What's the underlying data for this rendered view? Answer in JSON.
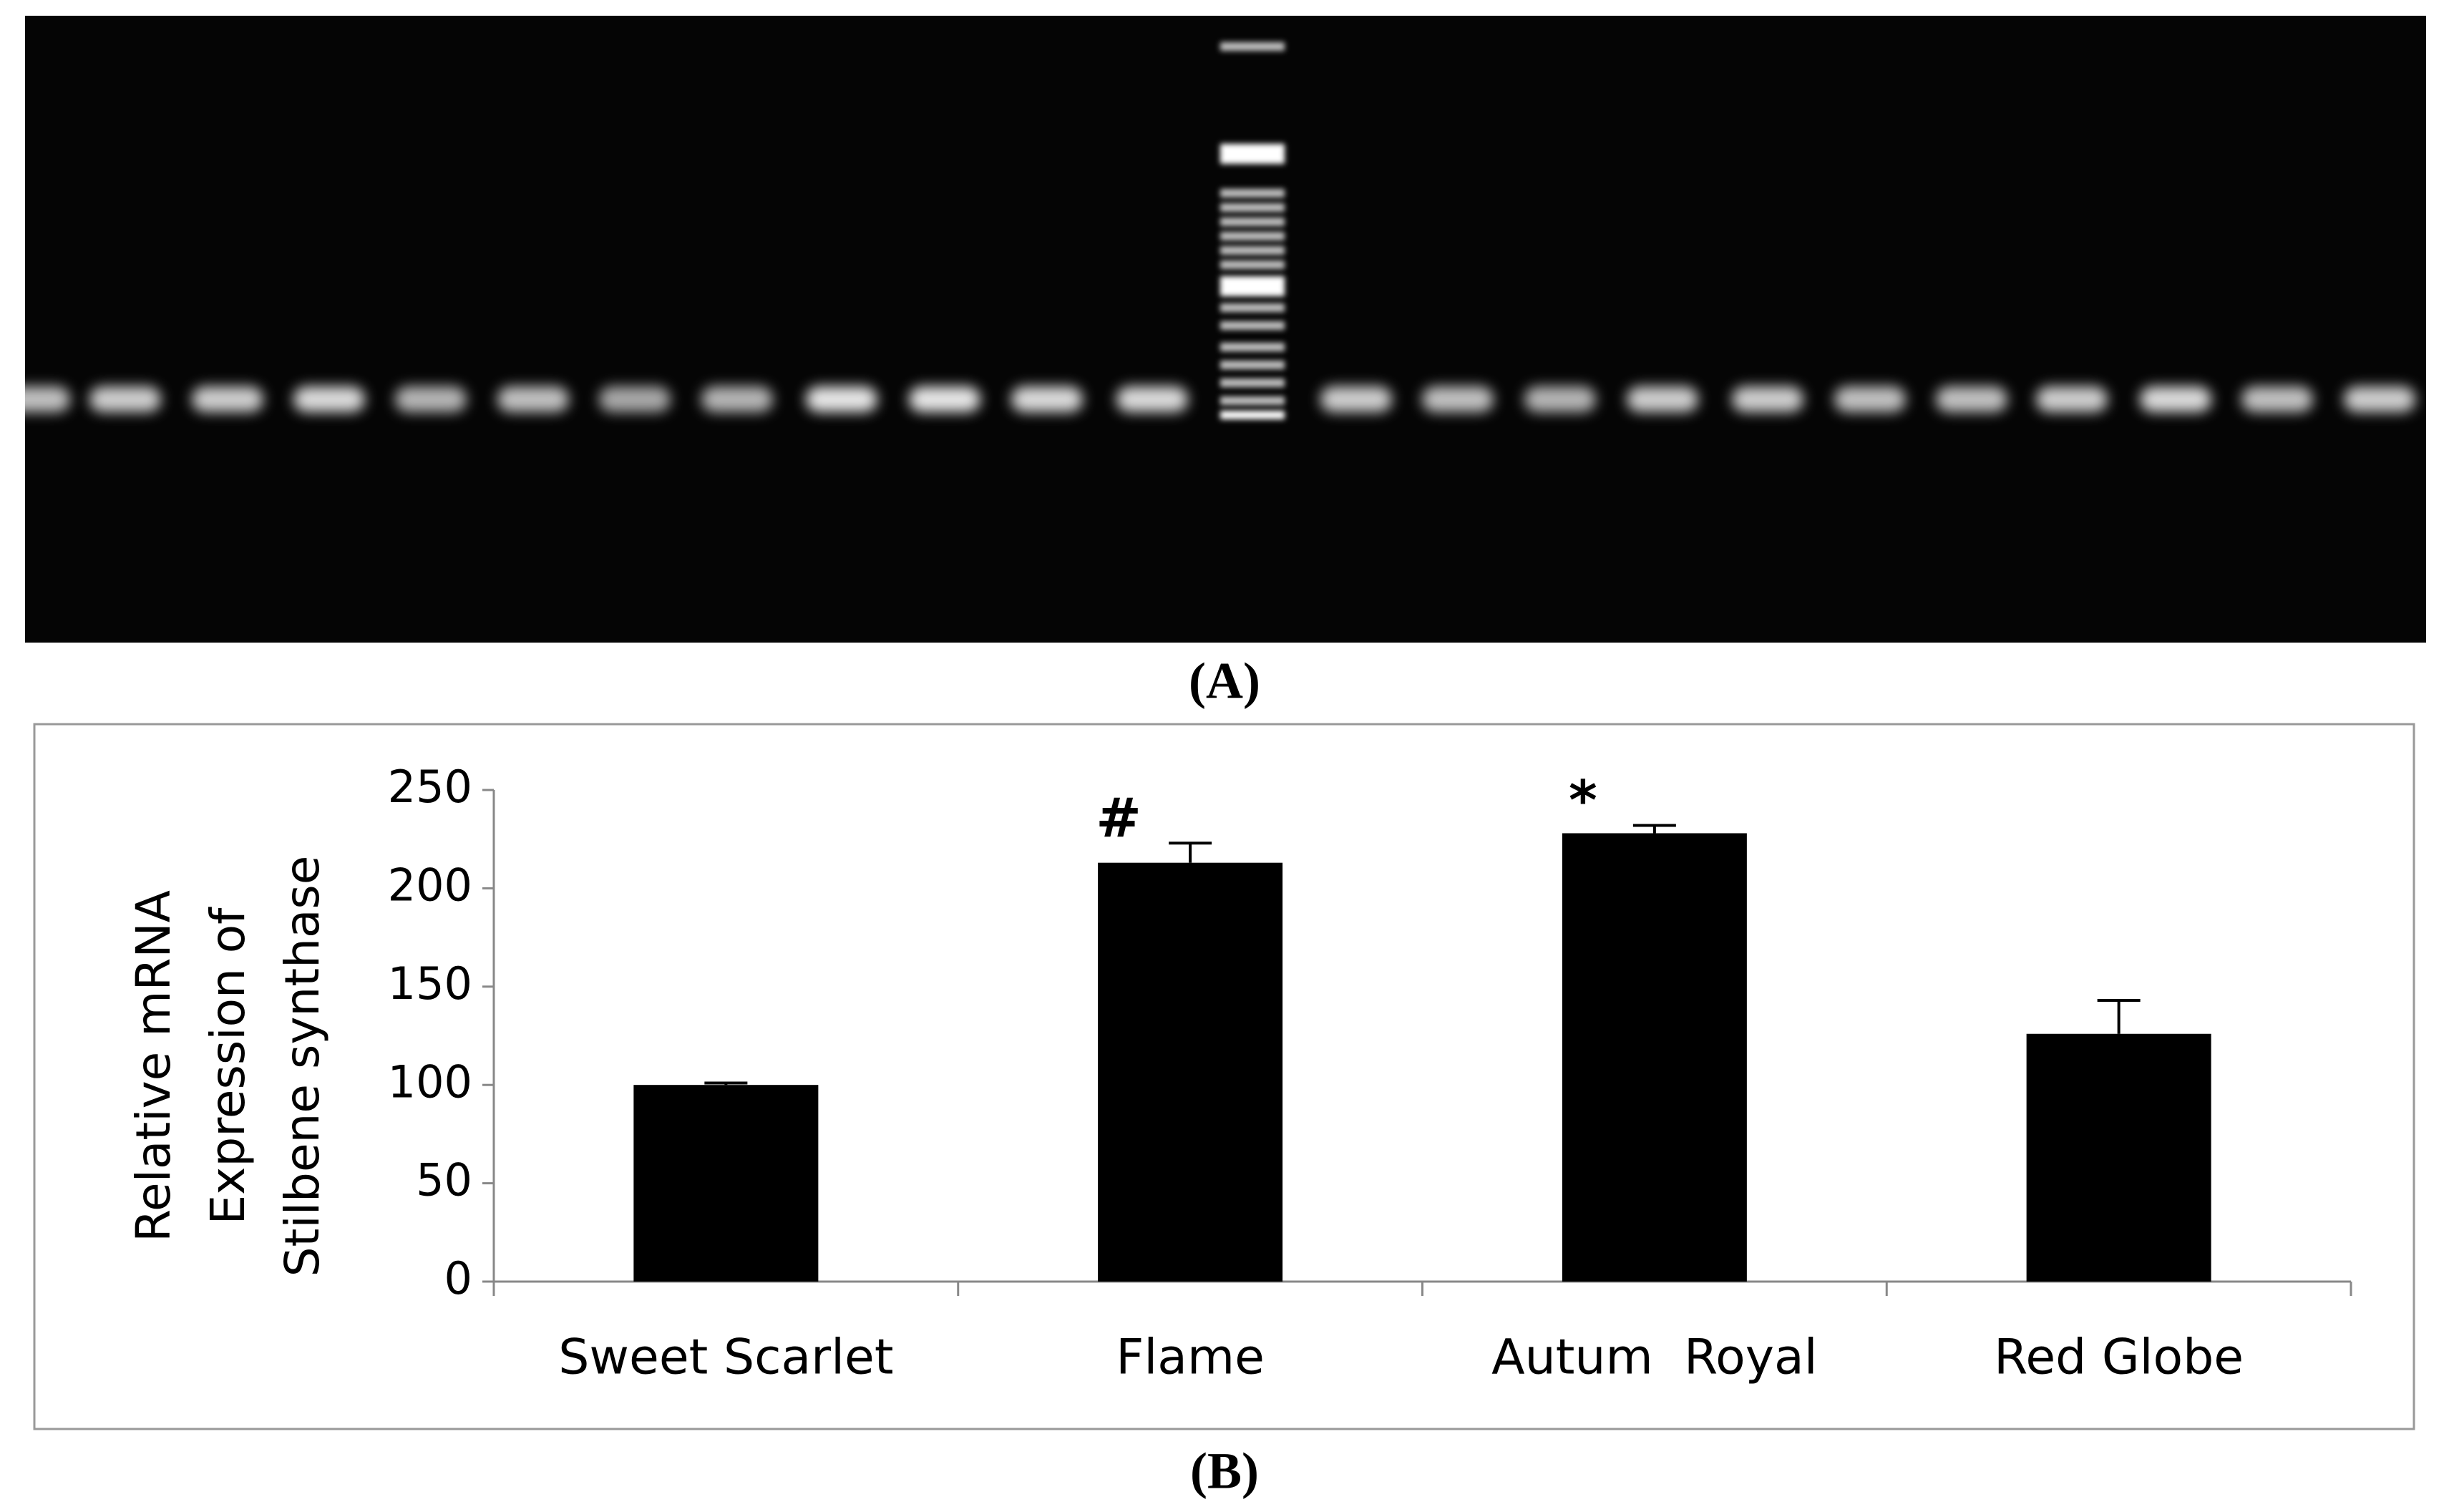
{
  "figure_labels": [
    "(A)",
    "(B)"
  ],
  "chart_data": {
    "type": "bar",
    "y_label": [
      "Relative mRNA",
      "Expression of",
      "Stilbene synthase"
    ],
    "categories": [
      "Sweet Scarlet",
      "Flame",
      "Autum  Royal",
      "Red Globe"
    ],
    "values": [
      100,
      213,
      228,
      126
    ],
    "errors": [
      1,
      10,
      4,
      17
    ],
    "annotations": [
      null,
      "#",
      "*",
      null
    ],
    "color": "#000000",
    "ylim": [
      0,
      250
    ],
    "yticks": [
      0,
      50,
      100,
      150,
      200,
      250
    ],
    "grid": false
  }
}
